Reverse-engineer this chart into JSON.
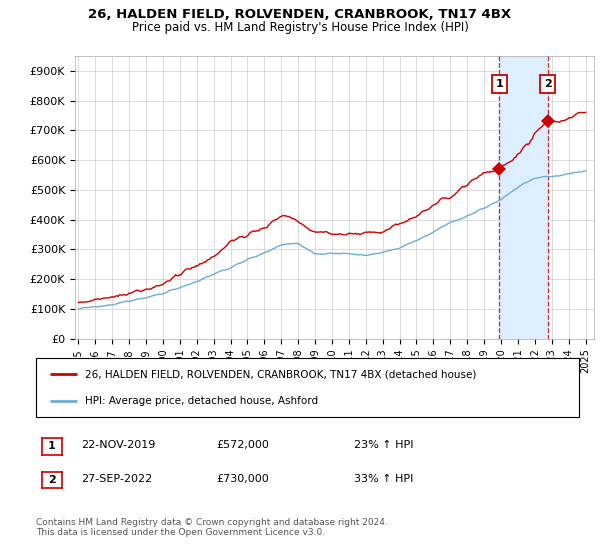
{
  "title": "26, HALDEN FIELD, ROLVENDEN, CRANBROOK, TN17 4BX",
  "subtitle": "Price paid vs. HM Land Registry's House Price Index (HPI)",
  "ylabel_ticks": [
    "£0",
    "£100K",
    "£200K",
    "£300K",
    "£400K",
    "£500K",
    "£600K",
    "£700K",
    "£800K",
    "£900K"
  ],
  "ytick_values": [
    0,
    100000,
    200000,
    300000,
    400000,
    500000,
    600000,
    700000,
    800000,
    900000
  ],
  "ylim": [
    0,
    950000
  ],
  "xlim_start": 1994.8,
  "xlim_end": 2025.5,
  "hpi_color": "#6baed6",
  "price_color": "#cc0000",
  "annotation_box_color": "#cc0000",
  "shade_color": "#ddeeff",
  "legend_label_red": "26, HALDEN FIELD, ROLVENDEN, CRANBROOK, TN17 4BX (detached house)",
  "legend_label_blue": "HPI: Average price, detached house, Ashford",
  "annotation1_label": "1",
  "annotation1_date": "22-NOV-2019",
  "annotation1_price": "£572,000",
  "annotation1_hpi": "23% ↑ HPI",
  "annotation2_label": "2",
  "annotation2_date": "27-SEP-2022",
  "annotation2_price": "£730,000",
  "annotation2_hpi": "33% ↑ HPI",
  "footnote": "Contains HM Land Registry data © Crown copyright and database right 2024.\nThis data is licensed under the Open Government Licence v3.0.",
  "bg_color": "#ffffff",
  "grid_color": "#cccccc",
  "sale1_x": 2019.9,
  "sale1_y": 572000,
  "sale2_x": 2022.75,
  "sale2_y": 730000,
  "n_points": 372
}
